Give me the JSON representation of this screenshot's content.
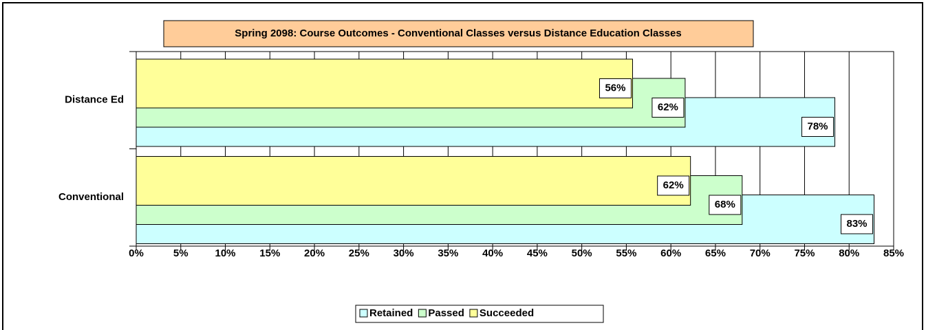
{
  "chart_data": {
    "type": "hbar",
    "title": "Spring 2098: Course Outcomes - Conventional Classes versus Distance Education Classes",
    "categories": [
      "Distance Ed",
      "Conventional"
    ],
    "series": [
      {
        "name": "Retained",
        "color": "#ccffff",
        "values": [
          78.4,
          82.8
        ],
        "value_labels": [
          "78%",
          "83%"
        ]
      },
      {
        "name": "Passed",
        "color": "#ccffcc",
        "values": [
          61.6,
          68.0
        ],
        "value_labels": [
          "62%",
          "68%"
        ]
      },
      {
        "name": "Succeeded",
        "color": "#ffff99",
        "values": [
          55.7,
          62.2
        ],
        "value_labels": [
          "56%",
          "62%"
        ]
      }
    ],
    "xlim": [
      0,
      85
    ],
    "xticks": [
      {
        "value": 0,
        "label": "0%"
      },
      {
        "value": 5,
        "label": "5%"
      },
      {
        "value": 10,
        "label": "10%"
      },
      {
        "value": 15,
        "label": "15%"
      },
      {
        "value": 20,
        "label": "20%"
      },
      {
        "value": 25,
        "label": "25%"
      },
      {
        "value": 30,
        "label": "30%"
      },
      {
        "value": 35,
        "label": "35%"
      },
      {
        "value": 40,
        "label": "40%"
      },
      {
        "value": 45,
        "label": "45%"
      },
      {
        "value": 50,
        "label": "50%"
      },
      {
        "value": 55,
        "label": "55%"
      },
      {
        "value": 60,
        "label": "60%"
      },
      {
        "value": 65,
        "label": "65%"
      },
      {
        "value": 70,
        "label": "70%"
      },
      {
        "value": 75,
        "label": "75%"
      },
      {
        "value": 80,
        "label": "80%"
      },
      {
        "value": 85,
        "label": "85%"
      }
    ],
    "grid": true,
    "legend": "bottom"
  }
}
